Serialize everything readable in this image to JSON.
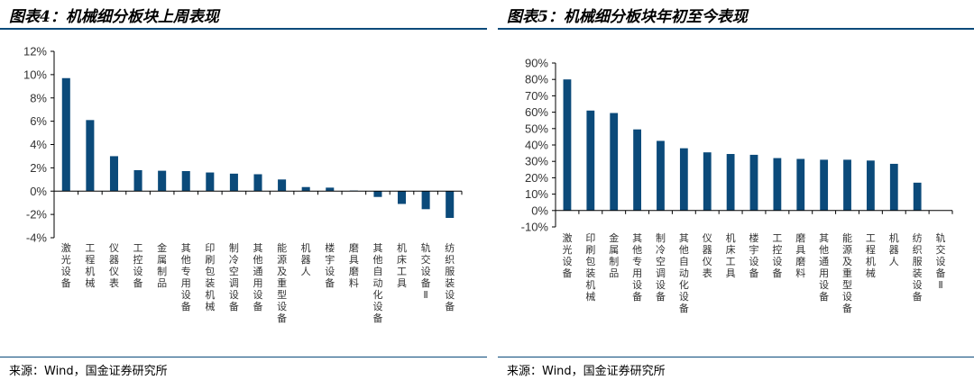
{
  "colors": {
    "bar": "#0b4a7a",
    "rule": "#0b4a7a",
    "axis": "#000000",
    "text": "#333333"
  },
  "charts": {
    "left": {
      "title": "图表4：机械细分板块上周表现",
      "source": "来源：Wind，国金证券研究所"
    },
    "right": {
      "title": "图表5：机械细分板块年初至今表现",
      "source": "来源：Wind，国金证券研究所"
    }
  },
  "chart_data": [
    {
      "type": "bar",
      "title": "图表4：机械细分板块上周表现",
      "xlabel": "",
      "ylabel": "",
      "ylim": [
        -4,
        12
      ],
      "yticks": [
        "12%",
        "10%",
        "8%",
        "6%",
        "4%",
        "2%",
        "0%",
        "-2%",
        "-4%"
      ],
      "yticks_values": [
        12,
        10,
        8,
        6,
        4,
        2,
        0,
        -2,
        -4
      ],
      "grid": false,
      "categories": [
        "激光设备",
        "工程机械",
        "仪器仪表",
        "工控设备",
        "金属制品",
        "其他专用设备",
        "印刷包装机械",
        "制冷空调设备",
        "其他通用设备",
        "能源及重型设备",
        "机器人",
        "楼宇设备",
        "磨具磨料",
        "其他自动化设备",
        "机床工具",
        "轨交设备Ⅱ",
        "纺织服装设备"
      ],
      "values": [
        9.7,
        6.1,
        3.0,
        1.8,
        1.75,
        1.72,
        1.6,
        1.5,
        1.45,
        1.0,
        0.35,
        0.3,
        0.05,
        -0.5,
        -1.1,
        -1.55,
        -2.3
      ]
    },
    {
      "type": "bar",
      "title": "图表5：机械细分板块年初至今表现",
      "xlabel": "",
      "ylabel": "",
      "ylim": [
        -10,
        90
      ],
      "yticks": [
        "90%",
        "80%",
        "70%",
        "60%",
        "50%",
        "40%",
        "30%",
        "20%",
        "10%",
        "0%",
        "-10%"
      ],
      "yticks_values": [
        90,
        80,
        70,
        60,
        50,
        40,
        30,
        20,
        10,
        0,
        -10
      ],
      "grid": false,
      "categories": [
        "激光设备",
        "印刷包装机械",
        "金属制品",
        "其他专用设备",
        "制冷空调设备",
        "其他自动化设备",
        "仪器仪表",
        "机床工具",
        "楼宇设备",
        "工控设备",
        "磨具磨料",
        "其他通用设备",
        "能源及重型设备",
        "工程机械",
        "机器人",
        "纺织服装设备",
        "轨交设备Ⅱ"
      ],
      "values": [
        80.0,
        61.0,
        59.5,
        49.5,
        42.5,
        38.0,
        35.5,
        34.5,
        34.0,
        32.0,
        31.5,
        31.0,
        31.0,
        30.5,
        28.5,
        17.0,
        0.0
      ]
    }
  ]
}
